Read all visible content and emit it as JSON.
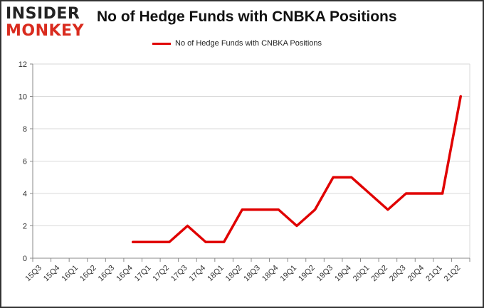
{
  "logo": {
    "line1": "INSIDER",
    "line2": "MONKEY"
  },
  "chart_data": {
    "type": "line",
    "title": "No of Hedge Funds with CNBKA Positions",
    "xlabel": "",
    "ylabel": "",
    "categories": [
      "15Q3",
      "15Q4",
      "16Q1",
      "16Q2",
      "16Q3",
      "16Q4",
      "17Q1",
      "17Q2",
      "17Q3",
      "17Q4",
      "18Q1",
      "18Q2",
      "18Q3",
      "18Q4",
      "19Q1",
      "19Q2",
      "19Q3",
      "19Q4",
      "20Q1",
      "20Q2",
      "20Q3",
      "20Q4",
      "21Q1",
      "21Q2"
    ],
    "series": [
      {
        "name": "No of Hedge Funds with CNBKA Positions",
        "color": "#e00000",
        "values": [
          null,
          null,
          null,
          null,
          null,
          1,
          1,
          1,
          2,
          1,
          1,
          3,
          3,
          3,
          2,
          3,
          5,
          5,
          4,
          3,
          4,
          4,
          4,
          10
        ]
      }
    ],
    "ylim": [
      0,
      12
    ],
    "yticks": [
      0,
      2,
      4,
      6,
      8,
      10,
      12
    ],
    "grid": true,
    "legend": "top-center"
  }
}
